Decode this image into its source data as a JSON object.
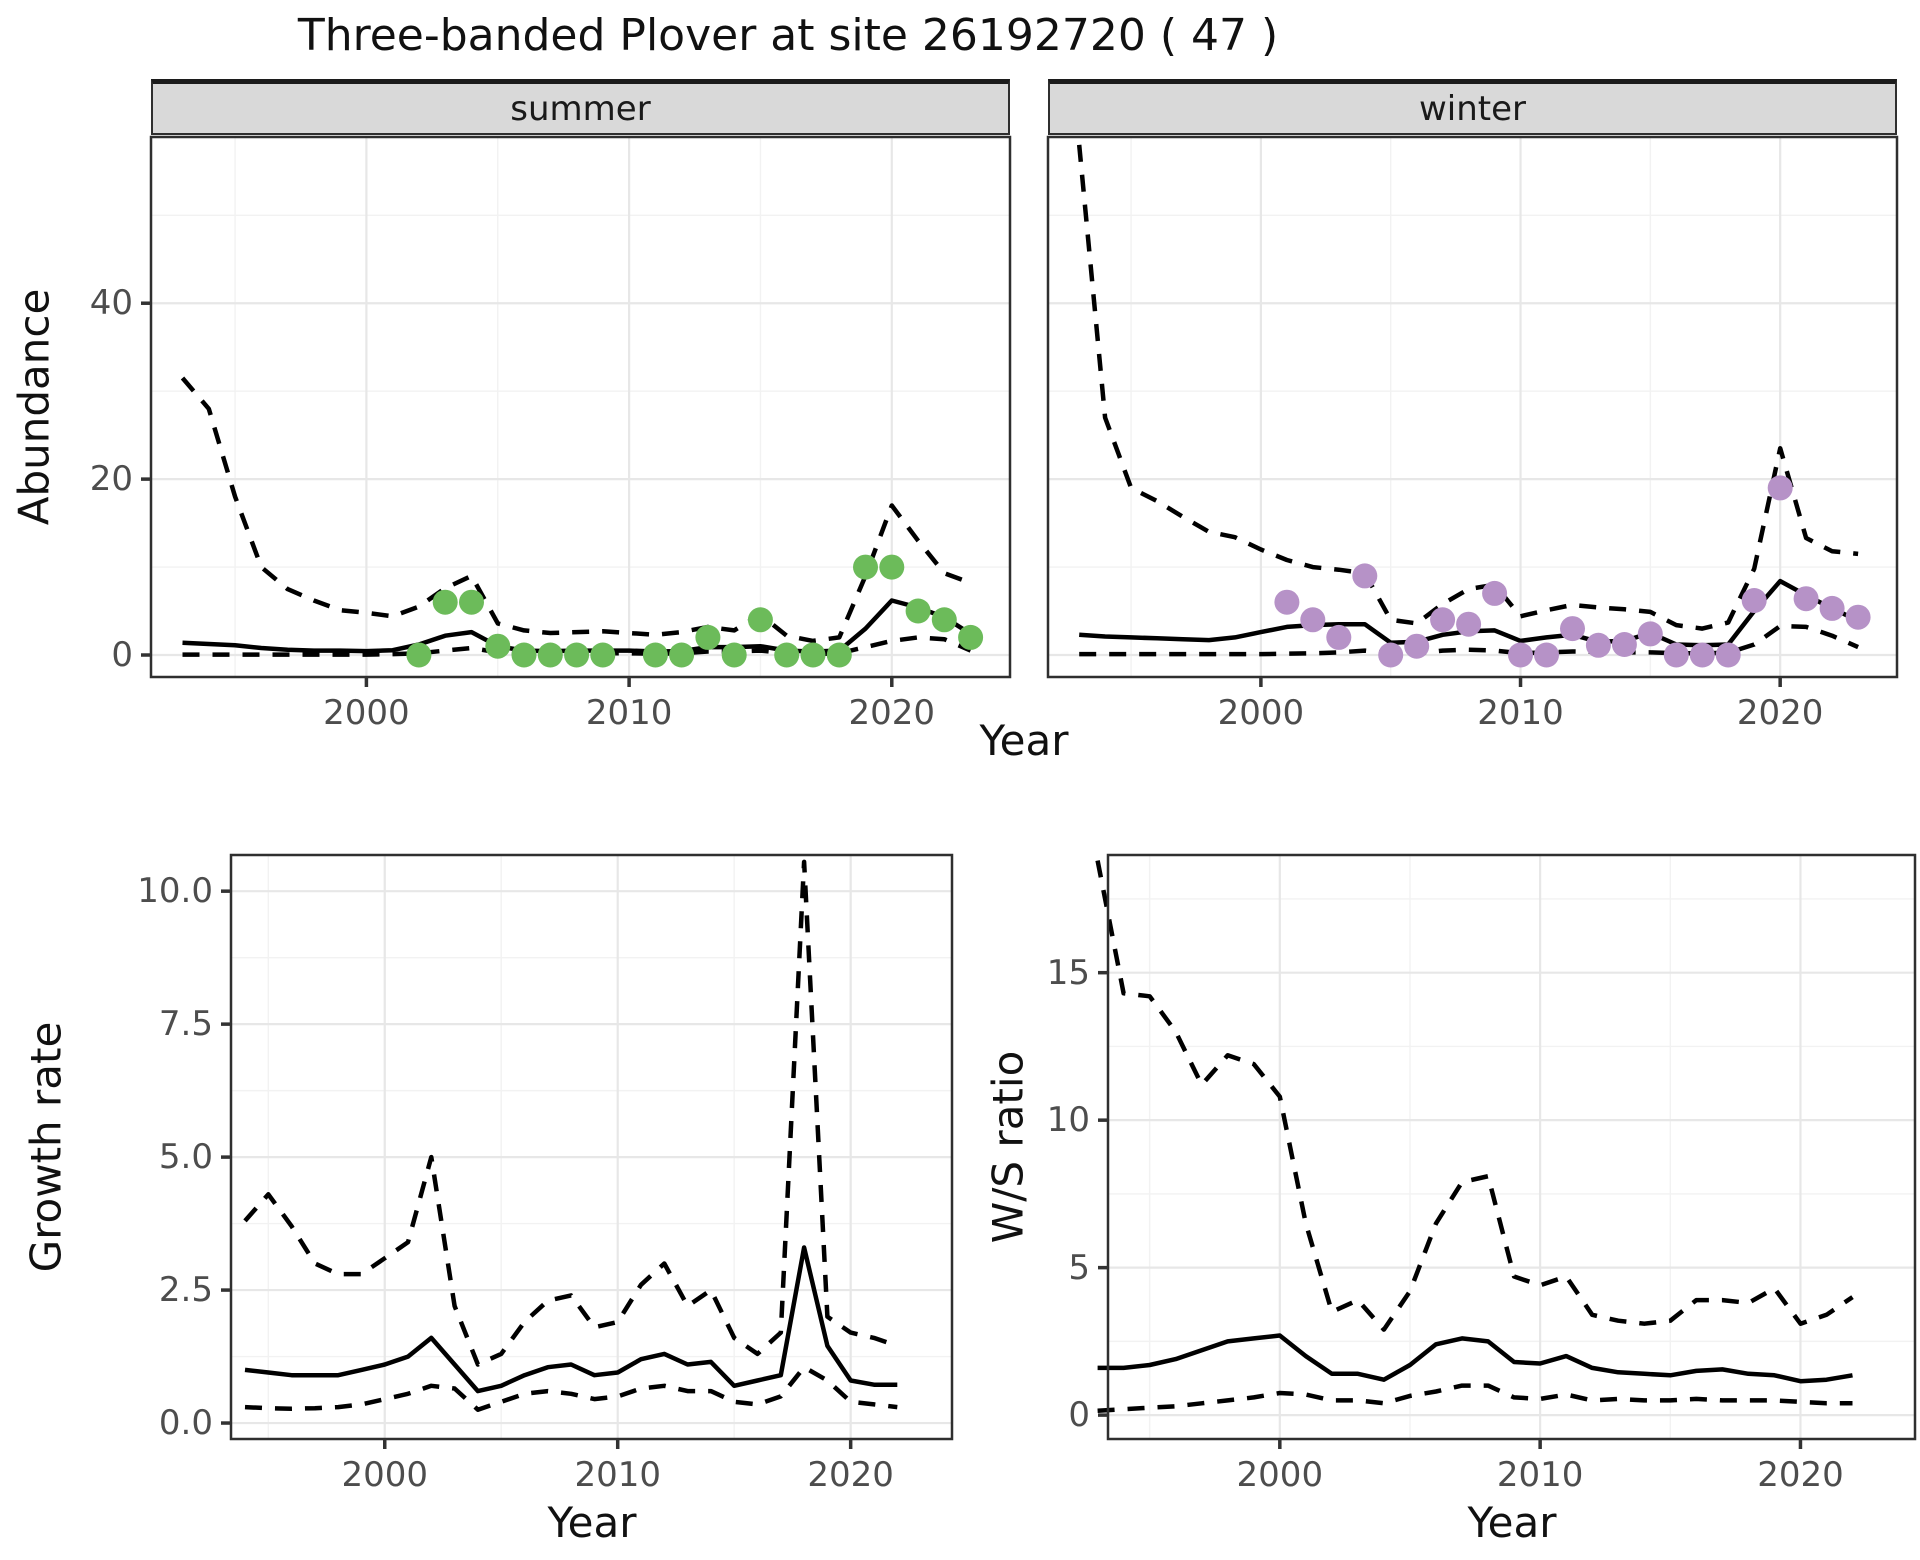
{
  "title": "Three-banded Plover at site 26192720 ( 47 )",
  "colors": {
    "summer_points": "#6cbb5a",
    "winter_points": "#b692c7",
    "line": "#000000",
    "grid_major": "#e7e7e7",
    "grid_minor": "#f2f2f2",
    "panel_border": "#2f2f2f",
    "tick_mark": "#333333",
    "tick_text": "#4d4d4d",
    "strip_bg": "#d9d9d9"
  },
  "chart_data": [
    {
      "panel": "summer",
      "type": "line",
      "facet_label": "summer",
      "xlabel": "Year",
      "ylabel": "Abundance",
      "legend_position": "none",
      "grid": true,
      "xlim": [
        1991.8,
        2024.5
      ],
      "ylim": [
        -2.5,
        58.9
      ],
      "x_ticks": {
        "values": [
          2000,
          2010,
          2020
        ],
        "labels": [
          "2000",
          "2010",
          "2020"
        ]
      },
      "x_minor": [
        1995,
        2005,
        2015
      ],
      "y_ticks": {
        "values": [
          0,
          20,
          40
        ],
        "labels": [
          "0",
          "20",
          "40"
        ]
      },
      "y_minor": [
        10,
        30,
        50
      ],
      "x": [
        1993,
        1994,
        1995,
        1996,
        1997,
        1998,
        1999,
        2000,
        2001,
        2002,
        2003,
        2004,
        2005,
        2006,
        2007,
        2008,
        2009,
        2010,
        2011,
        2012,
        2013,
        2014,
        2015,
        2016,
        2017,
        2018,
        2019,
        2020,
        2021,
        2022,
        2023
      ],
      "series": [
        {
          "name": "upper 95% CI",
          "style": "dashed",
          "values": [
            31.5,
            28,
            18,
            10,
            7.5,
            6.2,
            5.1,
            4.8,
            4.4,
            5.5,
            7.6,
            9.0,
            3.6,
            2.8,
            2.5,
            2.6,
            2.7,
            2.5,
            2.3,
            2.6,
            3.2,
            2.8,
            4.6,
            2.2,
            1.6,
            2.0,
            9.0,
            17.0,
            13.0,
            9.3,
            8.2
          ]
        },
        {
          "name": "lower 95% CI",
          "style": "dashed",
          "values": [
            0.05,
            0.05,
            0.05,
            0.05,
            0.05,
            0.05,
            0.05,
            0.05,
            0.1,
            0.2,
            0.5,
            0.8,
            0.3,
            0.1,
            0.1,
            0.15,
            0.2,
            0.2,
            0.15,
            0.2,
            0.4,
            0.4,
            0.5,
            0.2,
            0.1,
            0.2,
            0.9,
            1.6,
            2.0,
            1.8,
            0.5
          ]
        },
        {
          "name": "median estimate",
          "style": "solid",
          "values": [
            1.4,
            1.25,
            1.1,
            0.8,
            0.6,
            0.5,
            0.5,
            0.45,
            0.55,
            1.2,
            2.2,
            2.6,
            1.0,
            0.5,
            0.45,
            0.5,
            0.5,
            0.5,
            0.4,
            0.45,
            0.9,
            0.9,
            1.0,
            0.5,
            0.4,
            0.5,
            3.0,
            6.2,
            5.4,
            4.3,
            2.4
          ]
        }
      ],
      "points": {
        "name": "observed summer counts",
        "color_key": "summer_points",
        "x": [
          2002,
          2003,
          2004,
          2005,
          2006,
          2007,
          2008,
          2009,
          2011,
          2012,
          2013,
          2014,
          2015,
          2016,
          2017,
          2018,
          2019,
          2020,
          2021,
          2022,
          2023
        ],
        "y": [
          0,
          6,
          6,
          1,
          0,
          0,
          0,
          0,
          0,
          0,
          2,
          0,
          4,
          0,
          0,
          0,
          10,
          10,
          5,
          4,
          2
        ]
      }
    },
    {
      "panel": "winter",
      "type": "line",
      "facet_label": "winter",
      "xlabel": "Year",
      "ylabel": "Abundance",
      "legend_position": "none",
      "grid": true,
      "xlim": [
        1991.8,
        2024.5
      ],
      "ylim": [
        -2.5,
        58.9
      ],
      "x_ticks": {
        "values": [
          2000,
          2010,
          2020
        ],
        "labels": [
          "2000",
          "2010",
          "2020"
        ]
      },
      "x_minor": [
        1995,
        2005,
        2015
      ],
      "y_ticks": {
        "values": [
          0,
          20,
          40
        ],
        "labels": [
          "0",
          "20",
          "40"
        ]
      },
      "y_minor": [
        10,
        30,
        50
      ],
      "x": [
        1993,
        1994,
        1995,
        1996,
        1997,
        1998,
        1999,
        2000,
        2001,
        2002,
        2003,
        2004,
        2005,
        2006,
        2007,
        2008,
        2009,
        2010,
        2011,
        2012,
        2013,
        2014,
        2015,
        2016,
        2017,
        2018,
        2019,
        2020,
        2021,
        2022,
        2023
      ],
      "series": [
        {
          "name": "upper 95% CI",
          "style": "dashed",
          "values": [
            58,
            27,
            19,
            17.5,
            15.7,
            14,
            13.4,
            12,
            10.8,
            10,
            9.7,
            9.3,
            4.0,
            3.6,
            5.8,
            7.5,
            8.0,
            4.4,
            5.1,
            5.7,
            5.4,
            5.2,
            4.9,
            3.4,
            3.0,
            3.7,
            9.8,
            23.5,
            13.3,
            11.8,
            11.5
          ]
        },
        {
          "name": "lower 95% CI",
          "style": "dashed",
          "values": [
            0.1,
            0.1,
            0.1,
            0.1,
            0.1,
            0.1,
            0.1,
            0.1,
            0.15,
            0.2,
            0.3,
            0.5,
            0.2,
            0.2,
            0.5,
            0.6,
            0.5,
            0.2,
            0.3,
            0.4,
            0.35,
            0.3,
            0.3,
            0.2,
            0.2,
            0.25,
            1.2,
            3.3,
            3.2,
            2.2,
            0.9
          ]
        },
        {
          "name": "median estimate",
          "style": "solid",
          "values": [
            2.3,
            2.1,
            2.0,
            1.9,
            1.8,
            1.7,
            2.0,
            2.6,
            3.2,
            3.4,
            3.5,
            3.5,
            1.4,
            1.5,
            2.3,
            2.7,
            2.8,
            1.6,
            2.0,
            2.3,
            1.5,
            1.6,
            2.5,
            1.2,
            1.1,
            1.2,
            5.0,
            8.4,
            6.8,
            5.3,
            3.9
          ]
        }
      ],
      "points": {
        "name": "observed winter counts",
        "color_key": "winter_points",
        "x": [
          2001,
          2002,
          2003,
          2004,
          2005,
          2006,
          2007,
          2008,
          2009,
          2010,
          2011,
          2012,
          2013,
          2014,
          2015,
          2016,
          2017,
          2018,
          2019,
          2020,
          2021,
          2022,
          2023
        ],
        "y": [
          6,
          4,
          2,
          9,
          0,
          1,
          4,
          3.5,
          7,
          0,
          0,
          3,
          1.1,
          1.2,
          2.4,
          0,
          0,
          0,
          6.2,
          19,
          6.4,
          5.3,
          4.3
        ]
      }
    },
    {
      "panel": "growth",
      "type": "line",
      "facet_label": "",
      "xlabel": "Year",
      "ylabel": "Growth rate",
      "legend_position": "none",
      "grid": true,
      "xlim": [
        1993.4,
        2024.35
      ],
      "ylim": [
        -0.3,
        10.68
      ],
      "x_ticks": {
        "values": [
          2000,
          2010,
          2020
        ],
        "labels": [
          "2000",
          "2010",
          "2020"
        ]
      },
      "x_minor": [
        1995,
        2005,
        2015
      ],
      "y_ticks": {
        "values": [
          0,
          2.5,
          5,
          7.5,
          10
        ],
        "labels": [
          "0.0",
          "2.5",
          "5.0",
          "7.5",
          "10.0"
        ]
      },
      "y_minor": [
        1.25,
        3.75,
        6.25,
        8.75
      ],
      "x": [
        1994,
        1995,
        1996,
        1997,
        1998,
        1999,
        2000,
        2001,
        2002,
        2003,
        2004,
        2005,
        2006,
        2007,
        2008,
        2009,
        2010,
        2011,
        2012,
        2013,
        2014,
        2015,
        2016,
        2017,
        2018,
        2019,
        2020,
        2021,
        2022
      ],
      "series": [
        {
          "name": "upper 95% CI",
          "style": "dashed",
          "values": [
            3.8,
            4.3,
            3.7,
            3.0,
            2.8,
            2.8,
            3.1,
            3.4,
            5.0,
            2.2,
            1.1,
            1.3,
            1.9,
            2.3,
            2.4,
            1.8,
            1.9,
            2.6,
            3.0,
            2.2,
            2.5,
            1.6,
            1.3,
            1.7,
            10.55,
            2.0,
            1.7,
            1.6,
            1.45
          ]
        },
        {
          "name": "lower 95% CI",
          "style": "dashed",
          "values": [
            0.3,
            0.28,
            0.27,
            0.28,
            0.3,
            0.35,
            0.45,
            0.55,
            0.7,
            0.65,
            0.25,
            0.4,
            0.55,
            0.6,
            0.55,
            0.45,
            0.5,
            0.65,
            0.7,
            0.6,
            0.6,
            0.4,
            0.35,
            0.5,
            1.05,
            0.8,
            0.4,
            0.35,
            0.3
          ]
        },
        {
          "name": "median estimate",
          "style": "solid",
          "values": [
            1.0,
            0.95,
            0.9,
            0.9,
            0.9,
            1.0,
            1.1,
            1.25,
            1.6,
            1.1,
            0.6,
            0.7,
            0.9,
            1.05,
            1.1,
            0.9,
            0.95,
            1.2,
            1.3,
            1.1,
            1.15,
            0.7,
            0.8,
            0.9,
            3.3,
            1.45,
            0.8,
            0.72,
            0.72
          ]
        }
      ]
    },
    {
      "panel": "ws",
      "type": "line",
      "facet_label": "",
      "xlabel": "Year",
      "ylabel": "W/S ratio",
      "legend_position": "none",
      "grid": true,
      "xlim": [
        1993.4,
        2024.4
      ],
      "ylim": [
        -0.81,
        18.99
      ],
      "x_ticks": {
        "values": [
          2000,
          2010,
          2020
        ],
        "labels": [
          "2000",
          "2010",
          "2020"
        ]
      },
      "x_minor": [
        1995,
        2005,
        2015
      ],
      "y_ticks": {
        "values": [
          0,
          5,
          10,
          15
        ],
        "labels": [
          "0",
          "5",
          "10",
          "15"
        ]
      },
      "y_minor": [
        2.5,
        7.5,
        12.5,
        17.5
      ],
      "x": [
        1993,
        1994,
        1995,
        1996,
        1997,
        1998,
        1999,
        2000,
        2001,
        2002,
        2003,
        2004,
        2005,
        2006,
        2007,
        2008,
        2009,
        2010,
        2011,
        2012,
        2013,
        2014,
        2015,
        2016,
        2017,
        2018,
        2019,
        2020,
        2021,
        2022
      ],
      "series": [
        {
          "name": "upper 95% CI",
          "style": "dashed",
          "values": [
            18.8,
            14.3,
            14.2,
            13.0,
            11.2,
            12.2,
            11.9,
            10.8,
            6.5,
            3.5,
            3.9,
            2.9,
            4.2,
            6.5,
            7.9,
            8.1,
            4.7,
            4.4,
            4.7,
            3.4,
            3.2,
            3.1,
            3.2,
            3.9,
            3.9,
            3.8,
            4.3,
            3.1,
            3.4,
            4.0
          ]
        },
        {
          "name": "lower 95% CI",
          "style": "dashed",
          "values": [
            0.15,
            0.2,
            0.25,
            0.3,
            0.4,
            0.5,
            0.6,
            0.75,
            0.7,
            0.5,
            0.5,
            0.4,
            0.65,
            0.8,
            1.0,
            1.0,
            0.6,
            0.55,
            0.7,
            0.5,
            0.55,
            0.5,
            0.5,
            0.55,
            0.5,
            0.5,
            0.5,
            0.45,
            0.4,
            0.4
          ]
        },
        {
          "name": "median estimate",
          "style": "solid",
          "values": [
            1.6,
            1.6,
            1.7,
            1.9,
            2.2,
            2.5,
            2.6,
            2.7,
            2.0,
            1.4,
            1.4,
            1.2,
            1.7,
            2.4,
            2.6,
            2.5,
            1.8,
            1.75,
            2.0,
            1.6,
            1.45,
            1.4,
            1.35,
            1.5,
            1.55,
            1.4,
            1.35,
            1.15,
            1.2,
            1.35
          ]
        }
      ]
    }
  ]
}
